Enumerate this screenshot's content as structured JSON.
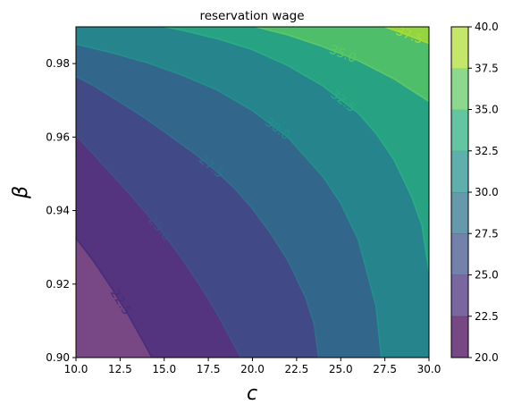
{
  "chart_data": {
    "type": "contour",
    "title": "reservation wage",
    "xlabel": "c",
    "ylabel": "β",
    "xlim": [
      10,
      30
    ],
    "ylim": [
      0.9,
      0.99
    ],
    "xticks": [
      "10.0",
      "12.5",
      "15.0",
      "17.5",
      "20.0",
      "22.5",
      "25.0",
      "27.5",
      "30.0"
    ],
    "yticks": [
      "0.90",
      "0.92",
      "0.94",
      "0.96",
      "0.98"
    ],
    "levels": [
      20.0,
      22.5,
      25.0,
      27.5,
      30.0,
      32.5,
      35.0,
      37.5,
      40.0
    ],
    "colorbar_ticks": [
      "20.0",
      "22.5",
      "25.0",
      "27.5",
      "30.0",
      "32.5",
      "35.0",
      "37.5",
      "40.0"
    ],
    "colorbar_colors": [
      "#440154",
      "#472d7b",
      "#3b528b",
      "#2c728e",
      "#21918c",
      "#28ae80",
      "#5ec962",
      "#addc30",
      "#fde725"
    ],
    "contour_labels": [
      "22.5",
      "25.0",
      "27.5",
      "30.0",
      "32.5",
      "35.0",
      "37.5"
    ],
    "contour_lines": [
      {
        "level": 22.5,
        "points": [
          [
            10.0,
            0.9325
          ],
          [
            11.0,
            0.9262
          ],
          [
            12.0,
            0.9191
          ],
          [
            13.0,
            0.9113
          ],
          [
            14.0,
            0.9027
          ],
          [
            14.3,
            0.9
          ]
        ]
      },
      {
        "level": 25.0,
        "points": [
          [
            10.0,
            0.9605
          ],
          [
            11.0,
            0.9553
          ],
          [
            12.0,
            0.95
          ],
          [
            13.0,
            0.9447
          ],
          [
            14.0,
            0.9392
          ],
          [
            15.0,
            0.9334
          ],
          [
            16.0,
            0.927
          ],
          [
            17.0,
            0.9198
          ],
          [
            18.0,
            0.912
          ],
          [
            19.0,
            0.903
          ],
          [
            19.35,
            0.9
          ]
        ]
      },
      {
        "level": 27.5,
        "points": [
          [
            10.0,
            0.9765
          ],
          [
            11.0,
            0.974
          ],
          [
            12.0,
            0.971
          ],
          [
            13.0,
            0.968
          ],
          [
            14.0,
            0.9649
          ],
          [
            15.0,
            0.9615
          ],
          [
            16.0,
            0.958
          ],
          [
            17.0,
            0.9545
          ],
          [
            18.0,
            0.9505
          ],
          [
            19.0,
            0.946
          ],
          [
            20.0,
            0.9405
          ],
          [
            21.0,
            0.934
          ],
          [
            22.0,
            0.9265
          ],
          [
            23.0,
            0.9165
          ],
          [
            23.5,
            0.909
          ],
          [
            23.75,
            0.9
          ]
        ]
      },
      {
        "level": 30.0,
        "points": [
          [
            10.0,
            0.9853
          ],
          [
            12.0,
            0.983
          ],
          [
            14.0,
            0.9803
          ],
          [
            16.0,
            0.9769
          ],
          [
            18.0,
            0.9728
          ],
          [
            20.0,
            0.9672
          ],
          [
            22.0,
            0.96
          ],
          [
            24.0,
            0.9492
          ],
          [
            25.0,
            0.942
          ],
          [
            26.0,
            0.932
          ],
          [
            27.0,
            0.914
          ],
          [
            27.3,
            0.9
          ]
        ]
      },
      {
        "level": 32.5,
        "points": [
          [
            15.0,
            0.99
          ],
          [
            16.0,
            0.9891
          ],
          [
            18.0,
            0.9868
          ],
          [
            20.0,
            0.9838
          ],
          [
            22.0,
            0.9795
          ],
          [
            24.0,
            0.9739
          ],
          [
            26.0,
            0.9665
          ],
          [
            27.0,
            0.961
          ],
          [
            28.0,
            0.954
          ],
          [
            29.0,
            0.944
          ],
          [
            29.6,
            0.936
          ],
          [
            30.0,
            0.9235
          ]
        ]
      },
      {
        "level": 35.0,
        "points": [
          [
            20.2,
            0.99
          ],
          [
            22.0,
            0.9878
          ],
          [
            24.0,
            0.9846
          ],
          [
            26.0,
            0.9808
          ],
          [
            28.0,
            0.9759
          ],
          [
            30.0,
            0.9697
          ]
        ]
      },
      {
        "level": 37.5,
        "points": [
          [
            27.5,
            0.99
          ],
          [
            28.5,
            0.9883
          ],
          [
            30.0,
            0.9855
          ]
        ]
      }
    ]
  }
}
